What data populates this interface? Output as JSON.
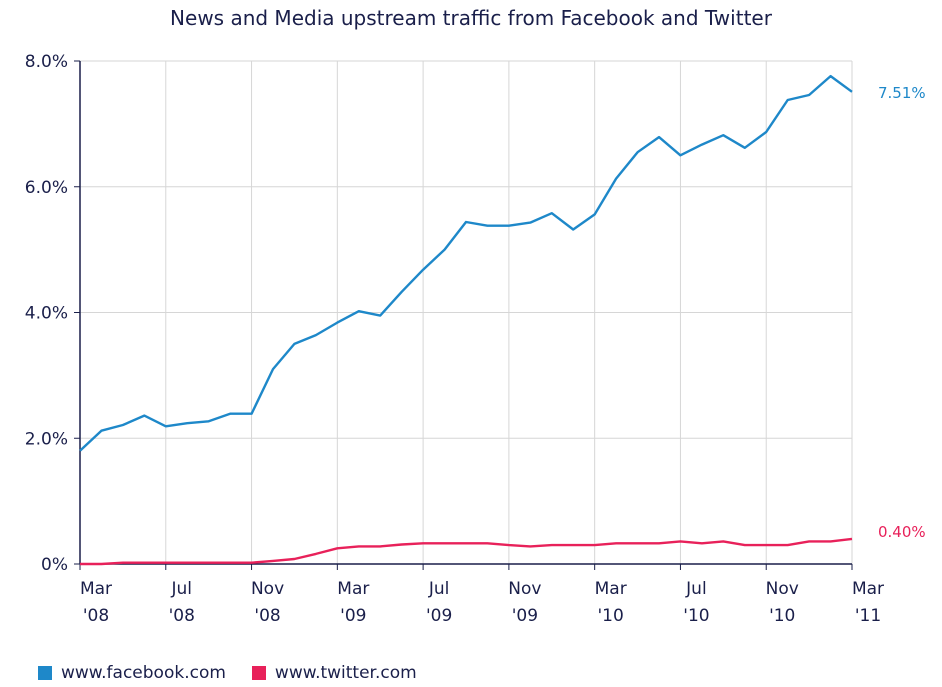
{
  "chart_data": {
    "type": "line",
    "title": "News and Media upstream traffic from Facebook and Twitter",
    "xlabel": "",
    "ylabel": "",
    "ylim": [
      0,
      8
    ],
    "grid": true,
    "legend_position": "bottom-left",
    "y_ticks": [
      {
        "value": 0,
        "label": "0%"
      },
      {
        "value": 2,
        "label": "2.0%"
      },
      {
        "value": 4,
        "label": "4.0%"
      },
      {
        "value": 6,
        "label": "6.0%"
      },
      {
        "value": 8,
        "label": "8.0%"
      }
    ],
    "x_ticks": [
      {
        "index": 0,
        "line1": "Mar",
        "line2": "'08"
      },
      {
        "index": 4,
        "line1": "Jul",
        "line2": "'08"
      },
      {
        "index": 8,
        "line1": "Nov",
        "line2": "'08"
      },
      {
        "index": 12,
        "line1": "Mar",
        "line2": "'09"
      },
      {
        "index": 16,
        "line1": "Jul",
        "line2": "'09"
      },
      {
        "index": 20,
        "line1": "Nov",
        "line2": "'09"
      },
      {
        "index": 24,
        "line1": "Mar",
        "line2": "'10"
      },
      {
        "index": 28,
        "line1": "Jul",
        "line2": "'10"
      },
      {
        "index": 32,
        "line1": "Nov",
        "line2": "'10"
      },
      {
        "index": 36,
        "line1": "Mar",
        "line2": "'11"
      }
    ],
    "x_range": [
      0,
      36
    ],
    "series": [
      {
        "name": "www.facebook.com",
        "color": "#1e88c9",
        "end_label": "7.51%",
        "x": [
          0,
          1,
          2,
          3,
          4,
          5,
          6,
          7,
          8,
          9,
          10,
          11,
          12,
          13,
          14,
          15,
          16,
          17,
          18,
          19,
          20,
          21,
          22,
          23,
          24,
          25,
          26,
          27,
          28,
          29,
          30,
          31,
          32,
          33,
          34,
          35,
          36
        ],
        "values": [
          1.8,
          2.12,
          2.21,
          2.36,
          2.19,
          2.24,
          2.27,
          2.39,
          2.39,
          3.1,
          3.5,
          3.64,
          3.84,
          4.02,
          3.95,
          4.33,
          4.68,
          5.0,
          5.44,
          5.38,
          5.38,
          5.43,
          5.58,
          5.32,
          5.56,
          6.13,
          6.55,
          6.79,
          6.5,
          6.67,
          6.82,
          6.62,
          6.87,
          7.38,
          7.46,
          7.76,
          7.51
        ]
      },
      {
        "name": "www.twitter.com",
        "color": "#e8215a",
        "end_label": "0.40%",
        "x": [
          0,
          1,
          2,
          3,
          4,
          5,
          6,
          7,
          8,
          9,
          10,
          11,
          12,
          13,
          14,
          15,
          16,
          17,
          18,
          19,
          20,
          21,
          22,
          23,
          24,
          25,
          26,
          27,
          28,
          29,
          30,
          31,
          32,
          33,
          34,
          35,
          36
        ],
        "values": [
          0.0,
          0.0,
          0.02,
          0.02,
          0.02,
          0.02,
          0.02,
          0.02,
          0.02,
          0.05,
          0.08,
          0.16,
          0.25,
          0.28,
          0.28,
          0.31,
          0.33,
          0.33,
          0.33,
          0.33,
          0.3,
          0.28,
          0.3,
          0.3,
          0.3,
          0.33,
          0.33,
          0.33,
          0.36,
          0.33,
          0.36,
          0.3,
          0.3,
          0.3,
          0.36,
          0.36,
          0.4
        ]
      }
    ]
  }
}
